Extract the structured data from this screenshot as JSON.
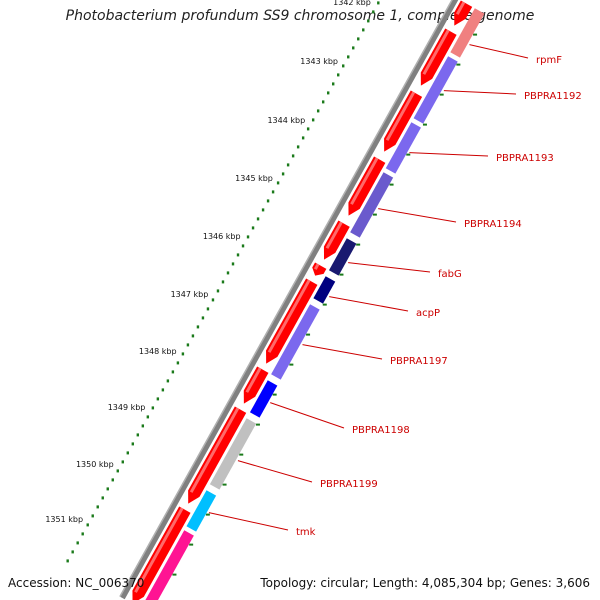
{
  "title": "Photobacterium profundum SS9 chromosome 1, complete genome",
  "accession": "Accession: NC_006370",
  "topology": "Topology: circular; Length: 4,085,304 bp; Genes: 3,606",
  "ticks": [
    "1342 kbp",
    "1343 kbp",
    "1344 kbp",
    "1345 kbp",
    "1346 kbp",
    "1347 kbp",
    "1348 kbp",
    "1349 kbp",
    "1350 kbp",
    "1351 kbp"
  ],
  "genes": [
    {
      "name": "rpmF",
      "color": "#f08080"
    },
    {
      "name": "PBPRA1192",
      "color": "#7b68ee"
    },
    {
      "name": "PBPRA1193",
      "color": "#7b68ee"
    },
    {
      "name": "PBPRA1194",
      "color": "#6a5acd"
    },
    {
      "name": "fabG",
      "color": "#191970"
    },
    {
      "name": "acpP",
      "color": "#000080"
    },
    {
      "name": "PBPRA1197",
      "color": "#7b68ee"
    },
    {
      "name": "PBPRA1198",
      "color": "#0000ff"
    },
    {
      "name": "PBPRA1199",
      "color": "#c0c0c0"
    },
    {
      "name": "tmk",
      "color": "#00bfff"
    },
    {
      "name": "",
      "color": "#ff1493"
    }
  ],
  "colors": {
    "cds": "#ff0000",
    "backbone": "#808080",
    "gc_dots": "#1a7a1a",
    "label": "#cc0000"
  }
}
